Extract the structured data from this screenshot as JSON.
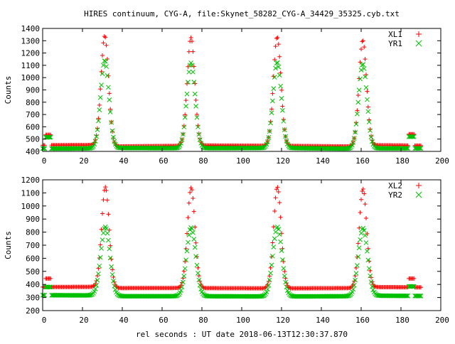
{
  "figure": {
    "title": "HIRES continuum, CYG-A, file:Skynet_58282_CYG-A_34429_35325.cyb.txt",
    "xlabel": "rel seconds : UT date 2018-06-13T12:30:37.870"
  },
  "colors": {
    "plus_series": "#ff0000",
    "cross_series": "#00c000",
    "axes": "#000000"
  },
  "chart_data": [
    {
      "type": "scatter",
      "title": "HIRES continuum, CYG-A, file:Skynet_58282_CYG-A_34429_35325.cyb.txt",
      "xlabel": "",
      "ylabel": "Counts",
      "xlim": [
        0,
        200
      ],
      "ylim": [
        400,
        1400
      ],
      "xticks": [
        0,
        20,
        40,
        60,
        80,
        100,
        120,
        140,
        160,
        180,
        200
      ],
      "yticks": [
        400,
        500,
        600,
        700,
        800,
        900,
        1000,
        1100,
        1200,
        1300,
        1400
      ],
      "grid": false,
      "legend": "top-right",
      "x_sampling": {
        "start": 0,
        "end": 190,
        "step": 0.5
      },
      "series": [
        {
          "name": "XL1",
          "marker": "plus",
          "color": "#ff0000",
          "baseline": [
            [
              0,
              450
            ],
            [
              28,
              452
            ],
            [
              35,
              440
            ],
            [
              70,
              445
            ],
            [
              78,
              448
            ],
            [
              120,
              445
            ],
            [
              155,
              440
            ],
            [
              165,
              450
            ],
            [
              190,
              447
            ]
          ],
          "peaks": [
            {
              "center": 31.2,
              "peak": 1340,
              "sigma": 1.9
            },
            {
              "center": 74.5,
              "peak": 1325,
              "sigma": 1.9
            },
            {
              "center": 117.8,
              "peak": 1330,
              "sigma": 1.9
            },
            {
              "center": 160.8,
              "peak": 1305,
              "sigma": 1.9
            }
          ],
          "calibration_bumps": [
            {
              "x0": 1.5,
              "x1": 4.0,
              "level": 535
            },
            {
              "x0": 184.0,
              "x1": 186.5,
              "level": 540
            }
          ]
        },
        {
          "name": "YR1",
          "marker": "cross",
          "color": "#00c000",
          "baseline": [
            [
              0,
              423
            ],
            [
              28,
              425
            ],
            [
              35,
              428
            ],
            [
              70,
              426
            ],
            [
              78,
              426
            ],
            [
              120,
              428
            ],
            [
              155,
              422
            ],
            [
              165,
              425
            ],
            [
              190,
              425
            ]
          ],
          "peaks": [
            {
              "center": 31.2,
              "peak": 1140,
              "sigma": 2.1
            },
            {
              "center": 74.5,
              "peak": 1120,
              "sigma": 2.1
            },
            {
              "center": 117.8,
              "peak": 1125,
              "sigma": 2.1
            },
            {
              "center": 160.8,
              "peak": 1110,
              "sigma": 2.1
            }
          ],
          "calibration_bumps": [
            {
              "x0": 1.5,
              "x1": 4.0,
              "level": 515
            },
            {
              "x0": 184.0,
              "x1": 186.5,
              "level": 520
            }
          ]
        }
      ]
    },
    {
      "type": "scatter",
      "title": "",
      "xlabel": "rel seconds : UT date 2018-06-13T12:30:37.870",
      "ylabel": "Counts",
      "xlim": [
        0,
        200
      ],
      "ylim": [
        200,
        1200
      ],
      "xticks": [
        0,
        20,
        40,
        60,
        80,
        100,
        120,
        140,
        160,
        180,
        200
      ],
      "yticks": [
        200,
        300,
        400,
        500,
        600,
        700,
        800,
        900,
        1000,
        1100,
        1200
      ],
      "grid": false,
      "legend": "top-right",
      "x_sampling": {
        "start": 0,
        "end": 190,
        "step": 0.5
      },
      "series": [
        {
          "name": "XL2",
          "marker": "plus",
          "color": "#ff0000",
          "baseline": [
            [
              0,
              380
            ],
            [
              28,
              382
            ],
            [
              35,
              372
            ],
            [
              70,
              373
            ],
            [
              78,
              372
            ],
            [
              120,
              370
            ],
            [
              155,
              372
            ],
            [
              165,
              380
            ],
            [
              190,
              378
            ]
          ],
          "peaks": [
            {
              "center": 31.5,
              "peak": 1145,
              "sigma": 1.9
            },
            {
              "center": 74.6,
              "peak": 1140,
              "sigma": 1.9
            },
            {
              "center": 117.9,
              "peak": 1145,
              "sigma": 1.9
            },
            {
              "center": 160.9,
              "peak": 1130,
              "sigma": 1.9
            }
          ],
          "calibration_bumps": [
            {
              "x0": 1.5,
              "x1": 4.0,
              "level": 445
            },
            {
              "x0": 184.0,
              "x1": 186.5,
              "level": 445
            }
          ]
        },
        {
          "name": "YR2",
          "marker": "cross",
          "color": "#00c000",
          "baseline": [
            [
              0,
              318
            ],
            [
              28,
              316
            ],
            [
              35,
              310
            ],
            [
              70,
              310
            ],
            [
              78,
              310
            ],
            [
              120,
              308
            ],
            [
              155,
              310
            ],
            [
              165,
              314
            ],
            [
              190,
              312
            ]
          ],
          "peaks": [
            {
              "center": 31.5,
              "peak": 840,
              "sigma": 2.3
            },
            {
              "center": 74.6,
              "peak": 835,
              "sigma": 2.3
            },
            {
              "center": 117.9,
              "peak": 840,
              "sigma": 2.3
            },
            {
              "center": 160.9,
              "peak": 830,
              "sigma": 2.3
            }
          ],
          "calibration_bumps": [
            {
              "x0": 1.5,
              "x1": 4.0,
              "level": 380
            },
            {
              "x0": 184.0,
              "x1": 186.5,
              "level": 385
            }
          ]
        }
      ]
    }
  ]
}
